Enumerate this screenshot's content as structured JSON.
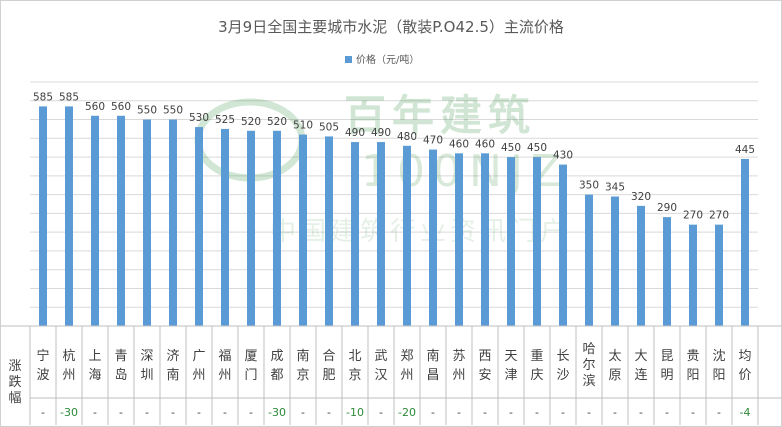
{
  "chart_data": {
    "type": "bar",
    "title": "3月9日全国主要城市水泥（散装P.O42.5）主流价格",
    "legend": {
      "label": "价格（元/吨）",
      "position": "top"
    },
    "watermark": {
      "text": "百年建筑",
      "subtext": "100NJZ",
      "tagline": "中国建筑行业资讯门户"
    },
    "row_header": [
      "涨",
      "跌",
      "幅"
    ],
    "categories": [
      "宁波",
      "杭州",
      "上海",
      "青岛",
      "深圳",
      "济南",
      "广州",
      "福州",
      "厦门",
      "成都",
      "南京",
      "合肥",
      "北京",
      "武汉",
      "郑州",
      "南昌",
      "苏州",
      "西安",
      "天津",
      "重庆",
      "长沙",
      "哈尔滨",
      "太原",
      "大连",
      "昆明",
      "贵阳",
      "沈阳",
      "均价"
    ],
    "series": [
      {
        "name": "价格（元/吨）",
        "color": "#5b9bd5",
        "values": [
          585,
          585,
          560,
          560,
          550,
          550,
          530,
          525,
          520,
          520,
          510,
          505,
          490,
          490,
          480,
          470,
          460,
          460,
          450,
          450,
          430,
          350,
          345,
          320,
          290,
          270,
          270,
          445
        ]
      }
    ],
    "changes": [
      "-",
      "-30",
      "-",
      "-",
      "-",
      "-",
      "-",
      "-",
      "-",
      "-30",
      "-",
      "-",
      "-10",
      "-",
      "-20",
      "-",
      "-",
      "-",
      "-",
      "-",
      "-",
      "-",
      "-",
      "-",
      "-",
      "-",
      "-",
      "-4"
    ],
    "ylim": [
      0,
      650
    ],
    "grid": true,
    "colors": {
      "bar": "#5b9bd5",
      "change_text": "#2e8b3a",
      "grid": "#d9d9d9",
      "title": "#595959"
    }
  }
}
